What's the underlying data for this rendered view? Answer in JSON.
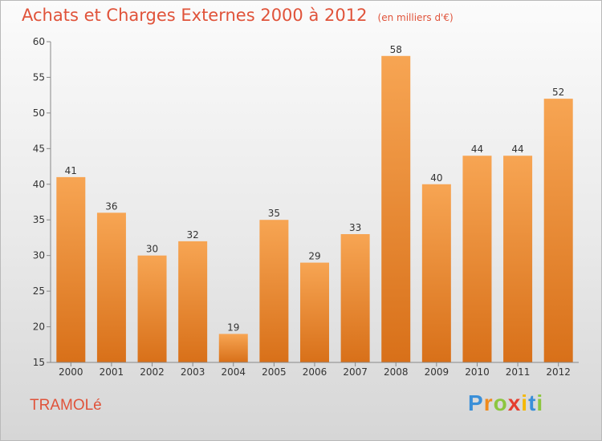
{
  "header": {
    "title": "Achats et Charges Externes 2000 à 2012",
    "unit": "(en milliers d'€)"
  },
  "footer": {
    "commune": "TRAMOLé",
    "logo_letters": [
      "P",
      "r",
      "o",
      "x",
      "i",
      "t",
      "i"
    ],
    "logo_colors": [
      "#3a8fd8",
      "#f08a1c",
      "#8cc63f",
      "#e53e2f",
      "#f5b800",
      "#3a8fd8",
      "#8cc63f"
    ]
  },
  "colors": {
    "bar_top": "#f7a553",
    "bar_bottom": "#d87019",
    "title": "#e0533a"
  },
  "chart_data": {
    "type": "bar",
    "title": "Achats et Charges Externes 2000 à 2012",
    "subtitle": "(en milliers d'€)",
    "categories": [
      "2000",
      "2001",
      "2002",
      "2003",
      "2004",
      "2005",
      "2006",
      "2007",
      "2008",
      "2009",
      "2010",
      "2011",
      "2012"
    ],
    "values": [
      41,
      36,
      30,
      32,
      19,
      35,
      29,
      33,
      58,
      40,
      44,
      44,
      52
    ],
    "xlabel": "",
    "ylabel": "",
    "ylim": [
      15,
      60
    ],
    "yticks": [
      15,
      20,
      25,
      30,
      35,
      40,
      45,
      50,
      55,
      60
    ],
    "grid": false,
    "legend": "none"
  }
}
